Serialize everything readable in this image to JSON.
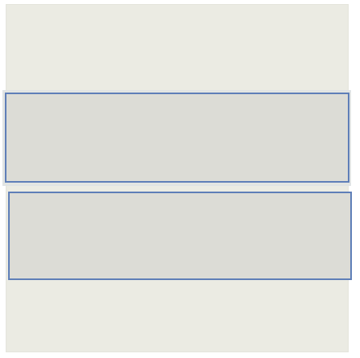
{
  "colors": {
    "panel_background": "#ebebe3",
    "selection_strip": "#e3e5e2",
    "row_fill": "#dcdcd6",
    "row_border": "#5f7fb8"
  },
  "rows": [
    {
      "label": ""
    },
    {
      "label": ""
    }
  ]
}
